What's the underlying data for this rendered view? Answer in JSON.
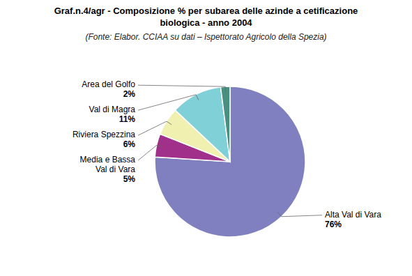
{
  "chart_data": {
    "type": "pie",
    "title": "Graf.n.4/agr - Composizione % per subarea delle azinde a cetificazione\nbiologica - anno 2004",
    "subtitle": "(Fonte: Elabor. CCIAA su dati – Ispettorato  Agricolo della Spezia)",
    "categories": [
      "Alta Val di Vara",
      "Media e Bassa\nVal di Vara",
      "Riviera Spezzina",
      "Val di Magra",
      "Area del Golfo"
    ],
    "values": [
      76,
      5,
      6,
      11,
      2
    ],
    "value_labels": [
      "76%",
      "5%",
      "6%",
      "11%",
      "2%"
    ],
    "colors": [
      "#8080c0",
      "#a0308a",
      "#f0f0b0",
      "#80d0d8",
      "#4a9080"
    ],
    "data_labels": true
  }
}
